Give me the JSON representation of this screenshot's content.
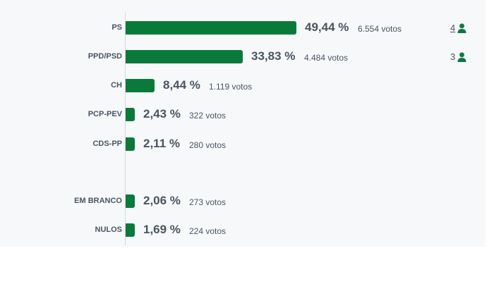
{
  "chart_data": {
    "type": "bar",
    "orientation": "horizontal",
    "categories": [
      "PS",
      "PPD/PSD",
      "CH",
      "PCP-PEV",
      "CDS-PP",
      "EM BRANCO",
      "NULOS"
    ],
    "values": [
      49.44,
      33.83,
      8.44,
      2.43,
      2.11,
      2.06,
      1.69
    ],
    "value_labels": [
      "49,44 %",
      "33,83 %",
      "8,44 %",
      "2,43 %",
      "2,11 %",
      "2,06 %",
      "1,69 %"
    ],
    "vote_labels": [
      "6.554 votos",
      "4.484 votos",
      "1.119 votos",
      "322 votos",
      "280 votos",
      "273 votos",
      "224 votos"
    ],
    "seats": [
      "4",
      "3",
      "",
      "",
      "",
      "",
      ""
    ],
    "seat_underlined": [
      true,
      false,
      false,
      false,
      false,
      false,
      false
    ],
    "colors": {
      "bar": "#0a7a3a",
      "text": "#4a5563",
      "panel": "#f6f8fa",
      "axis": "#d4d8dd",
      "icon": "#0a7a3a"
    },
    "icons": {
      "seat": "person-icon"
    }
  }
}
